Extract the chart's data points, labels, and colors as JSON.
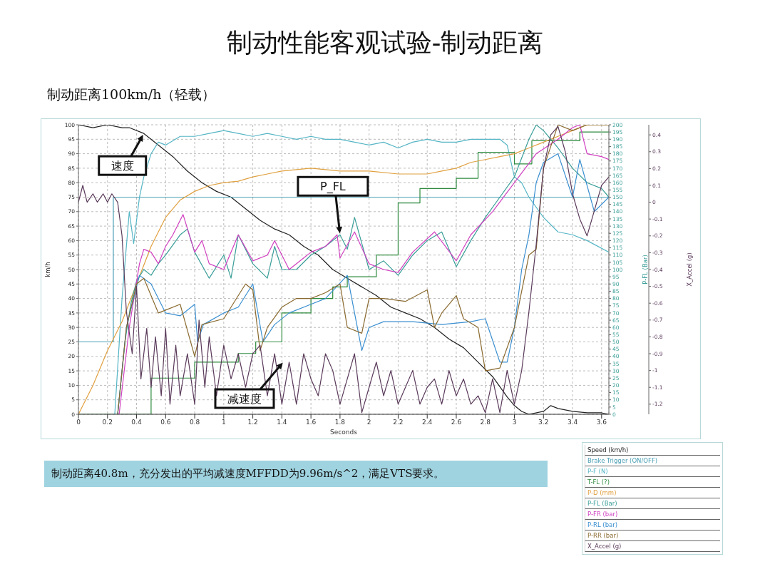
{
  "chart_data": {
    "type": "line",
    "title": "制动性能客观试验-制动距离",
    "subtitle": "制动距离100km/h（轻载）",
    "xlabel": "Seconds",
    "ylabel": "km/h",
    "y2label": "P-FL (Bar)",
    "y3label": "X_Accel (g)",
    "xlim": [
      0,
      3.65
    ],
    "xticks": [
      0,
      0.2,
      0.4,
      0.6,
      0.8,
      1,
      1.2,
      1.4,
      1.6,
      1.8,
      2,
      2.2,
      2.4,
      2.6,
      2.8,
      3,
      3.2,
      3.4,
      3.6
    ],
    "ylim": [
      0,
      100
    ],
    "yticks": [
      0,
      5,
      10,
      15,
      20,
      25,
      30,
      35,
      40,
      45,
      50,
      55,
      60,
      65,
      70,
      75,
      80,
      85,
      90,
      95,
      100
    ],
    "y2lim": [
      0,
      200
    ],
    "y2ticks": [
      0,
      5,
      10,
      15,
      20,
      25,
      30,
      35,
      40,
      45,
      50,
      55,
      60,
      65,
      70,
      75,
      80,
      85,
      90,
      95,
      100,
      105,
      110,
      115,
      120,
      125,
      130,
      135,
      140,
      145,
      150,
      155,
      160,
      165,
      170,
      175,
      180,
      185,
      190,
      195,
      200
    ],
    "y3lim": [
      -1.26,
      0.46
    ],
    "y3ticks": [
      -1.2,
      -1.1,
      -1,
      -0.9,
      -0.8,
      -0.7,
      -0.6,
      -0.5,
      -0.4,
      -0.3,
      -0.2,
      -0.1,
      0,
      0.1,
      0.2,
      0.3,
      0.4
    ],
    "grid": true,
    "legend": "bottom right",
    "series": [
      {
        "name": "Speed (km/h)",
        "color": "#222222",
        "x": [
          0,
          0.1,
          0.2,
          0.3,
          0.35,
          0.45,
          0.55,
          0.65,
          0.75,
          0.85,
          0.95,
          1.05,
          1.15,
          1.25,
          1.35,
          1.45,
          1.55,
          1.65,
          1.75,
          1.85,
          1.95,
          2.05,
          2.15,
          2.25,
          2.35,
          2.45,
          2.55,
          2.65,
          2.75,
          2.85,
          2.95,
          3,
          3.05,
          3.1,
          3.2,
          3.25,
          3.3,
          3.4,
          3.5,
          3.6,
          3.65
        ],
        "values": [
          100,
          99,
          100,
          99,
          99,
          97,
          93,
          89,
          84,
          80,
          77,
          75,
          71,
          67,
          64,
          62,
          58,
          55,
          50,
          47,
          44,
          41,
          37,
          35,
          33,
          30,
          26,
          23,
          18,
          13,
          6,
          3,
          1,
          0,
          1,
          3,
          2,
          1,
          0.5,
          0.5,
          0
        ]
      },
      {
        "name": "Brake Trigger (ON/OFF)",
        "color": "#4a9fb5",
        "type": "step",
        "x": [
          0,
          0.24,
          3.65
        ],
        "values": [
          25,
          75,
          75
        ]
      },
      {
        "name": "P-F (N)",
        "color": "#55b5c5",
        "x": [
          0.25,
          0.3,
          0.35,
          0.38,
          0.42,
          0.45,
          0.5,
          0.55,
          0.6,
          0.7,
          0.8,
          0.9,
          1,
          1.1,
          1.2,
          1.3,
          1.4,
          1.5,
          1.6,
          1.7,
          1.8,
          1.9,
          2,
          2.1,
          2.2,
          2.3,
          2.4,
          2.5,
          2.6,
          2.7,
          2.8,
          2.9,
          2.95,
          3,
          3.05,
          3.1,
          3.2,
          3.3,
          3.4,
          3.5,
          3.65
        ],
        "values": [
          0,
          40,
          70,
          59,
          75,
          82,
          90,
          94,
          93,
          96,
          96,
          97,
          98,
          97,
          96,
          97,
          96,
          95,
          96,
          95,
          95,
          94,
          93,
          94,
          92,
          94,
          95,
          94,
          94,
          95,
          95,
          95,
          93,
          82,
          80,
          75,
          68,
          63,
          62,
          60,
          56
        ]
      },
      {
        "name": "T-FL (?)",
        "color": "#2e8b3e",
        "type": "step",
        "x": [
          0,
          0.5,
          0.8,
          1.1,
          1.22,
          1.4,
          1.6,
          1.75,
          1.85,
          2.05,
          2.2,
          2.35,
          2.6,
          2.75,
          3,
          3.12,
          3.45,
          3.65
        ],
        "values": [
          0,
          12.5,
          18,
          21,
          25,
          35,
          40,
          44,
          47.5,
          55,
          73,
          78,
          81.5,
          90.5,
          86.5,
          94.5,
          97.5,
          97.5
        ]
      },
      {
        "name": "P-D (mm)",
        "color": "#e0a040",
        "x": [
          0,
          0.1,
          0.2,
          0.3,
          0.4,
          0.5,
          0.6,
          0.7,
          0.8,
          0.9,
          1,
          1.1,
          1.2,
          1.3,
          1.4,
          1.6,
          1.8,
          2,
          2.2,
          2.4,
          2.5,
          2.6,
          2.7,
          2.8,
          2.9,
          3,
          3.1,
          3.2,
          3.3,
          3.4,
          3.5,
          3.55,
          3.65
        ],
        "values": [
          0,
          10,
          22,
          32,
          45,
          58,
          68,
          74,
          77,
          79,
          80,
          80.5,
          82,
          83,
          84,
          85,
          84,
          84,
          83,
          83,
          84,
          85,
          87,
          88,
          89,
          90,
          92,
          94,
          96,
          98,
          100,
          100,
          100
        ]
      },
      {
        "name": "P-FL (Bar)",
        "color": "#3a9e98",
        "axis": "y2",
        "x": [
          0.27,
          0.32,
          0.36,
          0.4,
          0.45,
          0.5,
          0.55,
          0.6,
          0.7,
          0.75,
          0.8,
          0.9,
          1,
          1.05,
          1.1,
          1.2,
          1.3,
          1.35,
          1.4,
          1.5,
          1.6,
          1.7,
          1.8,
          1.85,
          1.9,
          2,
          2.1,
          2.2,
          2.3,
          2.4,
          2.5,
          2.6,
          2.7,
          2.8,
          2.9,
          3,
          3.1,
          3.15,
          3.2,
          3.3,
          3.4,
          3.5,
          3.6,
          3.65
        ],
        "values": [
          0,
          50,
          76,
          92,
          100,
          96,
          104,
          110,
          124,
          128,
          112,
          94,
          110,
          94,
          124,
          104,
          94,
          116,
          100,
          100,
          110,
          116,
          124,
          114,
          136,
          100,
          106,
          96,
          110,
          120,
          126,
          102,
          120,
          136,
          150,
          164,
          190,
          200,
          196,
          184,
          170,
          160,
          156,
          150
        ]
      },
      {
        "name": "P-FR (bar)",
        "color": "#d040c0",
        "axis": "y2",
        "x": [
          0.28,
          0.35,
          0.42,
          0.45,
          0.5,
          0.55,
          0.6,
          0.65,
          0.72,
          0.8,
          0.85,
          0.9,
          1,
          1.1,
          1.2,
          1.3,
          1.35,
          1.45,
          1.55,
          1.6,
          1.7,
          1.78,
          1.8,
          1.9,
          2,
          2.1,
          2.2,
          2.3,
          2.45,
          2.6,
          2.7,
          2.85,
          3,
          3.15,
          3.3,
          3.4,
          3.45,
          3.5,
          3.6,
          3.65
        ],
        "values": [
          0,
          60,
          104,
          114,
          112,
          104,
          116,
          124,
          138,
          112,
          120,
          104,
          100,
          124,
          106,
          110,
          120,
          100,
          108,
          112,
          116,
          124,
          108,
          126,
          104,
          100,
          98,
          112,
          126,
          106,
          124,
          140,
          160,
          180,
          190,
          198,
          200,
          180,
          178,
          176
        ]
      },
      {
        "name": "P-RL (bar)",
        "color": "#3a8fd0",
        "axis": "y2",
        "x": [
          0.27,
          0.33,
          0.38,
          0.42,
          0.5,
          0.6,
          0.7,
          0.8,
          0.82,
          0.86,
          1,
          1.1,
          1.2,
          1.27,
          1.35,
          1.45,
          1.6,
          1.7,
          1.85,
          1.95,
          2,
          2.1,
          2.3,
          2.5,
          2.7,
          2.8,
          2.9,
          2.95,
          3,
          3.05,
          3.1,
          3.15,
          3.2,
          3.3,
          3.4,
          3.45,
          3.55,
          3.65
        ],
        "values": [
          0,
          60,
          80,
          96,
          90,
          70,
          68,
          76,
          50,
          62,
          70,
          74,
          90,
          50,
          62,
          70,
          76,
          80,
          96,
          44,
          60,
          64,
          64,
          62,
          64,
          66,
          36,
          36,
          60,
          100,
          124,
          160,
          174,
          180,
          150,
          176,
          140,
          150
        ]
      },
      {
        "name": "P-RR (bar)",
        "color": "#8a6a30",
        "axis": "y2",
        "x": [
          0.27,
          0.33,
          0.4,
          0.45,
          0.55,
          0.6,
          0.7,
          0.8,
          0.85,
          1,
          1.15,
          1.2,
          1.25,
          1.3,
          1.4,
          1.5,
          1.6,
          1.7,
          1.8,
          1.85,
          1.95,
          2,
          2.1,
          2.25,
          2.4,
          2.45,
          2.5,
          2.6,
          2.65,
          2.75,
          2.8,
          2.9,
          3,
          3.1,
          3.15,
          3.2,
          3.3,
          3.4,
          3.5,
          3.65
        ],
        "values": [
          0,
          60,
          90,
          94,
          70,
          72,
          76,
          40,
          62,
          66,
          90,
          86,
          44,
          60,
          74,
          80,
          80,
          84,
          90,
          60,
          56,
          80,
          80,
          78,
          86,
          60,
          70,
          82,
          66,
          60,
          30,
          32,
          60,
          110,
          114,
          170,
          200,
          196,
          200,
          200
        ]
      },
      {
        "name": "X_Accel (g)",
        "color": "#5a3a5a",
        "axis": "y3",
        "x": [
          0,
          0.03,
          0.06,
          0.1,
          0.13,
          0.17,
          0.2,
          0.23,
          0.27,
          0.3,
          0.33,
          0.37,
          0.4,
          0.43,
          0.47,
          0.5,
          0.53,
          0.57,
          0.6,
          0.63,
          0.67,
          0.7,
          0.75,
          0.8,
          0.83,
          0.87,
          0.9,
          0.95,
          1,
          1.05,
          1.1,
          1.15,
          1.2,
          1.25,
          1.3,
          1.35,
          1.4,
          1.45,
          1.5,
          1.55,
          1.6,
          1.65,
          1.7,
          1.75,
          1.8,
          1.85,
          1.9,
          1.95,
          2,
          2.05,
          2.1,
          2.15,
          2.2,
          2.25,
          2.3,
          2.35,
          2.4,
          2.45,
          2.5,
          2.55,
          2.6,
          2.65,
          2.7,
          2.75,
          2.8,
          2.85,
          2.9,
          2.95,
          3,
          3.05,
          3.1,
          3.15,
          3.2,
          3.25,
          3.3,
          3.35,
          3.4,
          3.45,
          3.5,
          3.55,
          3.6,
          3.65
        ],
        "values": [
          0,
          0.1,
          0,
          0.05,
          0,
          0.05,
          0,
          0.05,
          0,
          -0.2,
          -0.65,
          -0.9,
          -0.5,
          -1.05,
          -0.75,
          -1.1,
          -0.8,
          -1.15,
          -0.75,
          -1.2,
          -0.85,
          -1.15,
          -0.9,
          -1.2,
          -0.7,
          -1.1,
          -0.8,
          -1.15,
          -0.85,
          -1.05,
          -0.9,
          -1.1,
          -0.9,
          -0.85,
          -1.15,
          -0.9,
          -1.2,
          -0.95,
          -1.2,
          -0.9,
          -1.05,
          -1.15,
          -0.9,
          -1,
          -1.2,
          -1.05,
          -0.9,
          -1.25,
          -1.1,
          -0.95,
          -1.15,
          -1,
          -1.2,
          -1.1,
          -1,
          -1.2,
          -1.1,
          -1.05,
          -1.2,
          -1,
          -1.15,
          -1.05,
          -1.2,
          -1.15,
          -1.25,
          -1.05,
          -1.25,
          -1,
          -1.2,
          -1,
          -0.65,
          -0.25,
          0.2,
          0.4,
          0.45,
          0.3,
          0.05,
          -0.1,
          -0.2,
          -0.05,
          0.1,
          0.15
        ]
      }
    ],
    "annotations": [
      {
        "text": "速度",
        "x": 0.45,
        "y": 97
      },
      {
        "text": "P_FL",
        "x": 1.8,
        "y": 62
      },
      "减速度",
      "制动距离40.8m，充分发出的平均减速度MFFDD为9.96m/s^2，满足VTS要求。"
    ]
  }
}
